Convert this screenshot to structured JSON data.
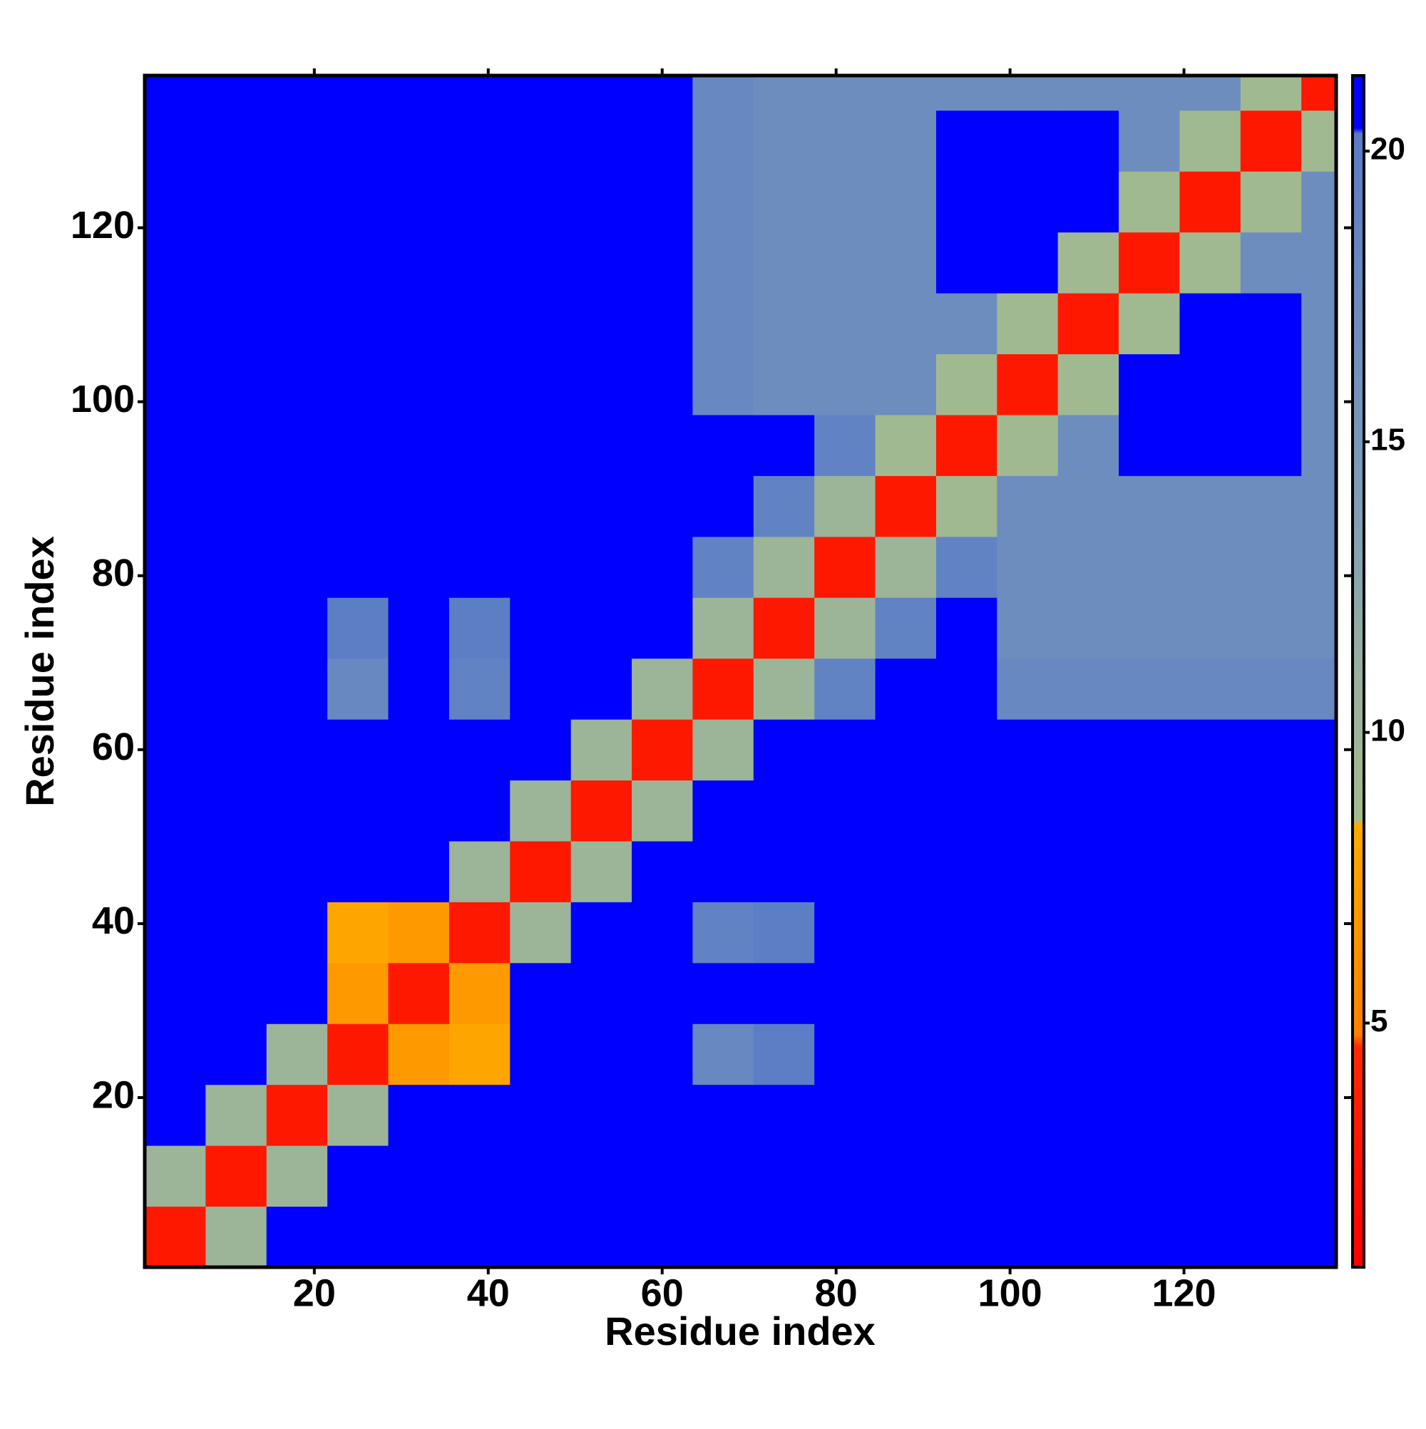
{
  "chart_data": {
    "type": "heatmap",
    "x_label": "Residue index",
    "y_label": "Residue index",
    "xbins": [
      0.5,
      7.5,
      14.5,
      21.5,
      28.5,
      35.5,
      42.5,
      49.5,
      56.5,
      63.5,
      70.5,
      77.5,
      84.5,
      91.5,
      98.5,
      105.5,
      112.5,
      119.5,
      126.5,
      133.5,
      137.5
    ],
    "ybins": [
      0.5,
      7.5,
      14.5,
      21.5,
      28.5,
      35.5,
      42.5,
      49.5,
      56.5,
      63.5,
      70.5,
      77.5,
      84.5,
      91.5,
      98.5,
      105.5,
      112.5,
      119.5,
      126.5,
      133.5,
      137.5
    ],
    "z": [
      [
        3,
        10,
        24,
        24,
        24,
        24,
        24,
        24,
        24,
        24,
        24,
        24,
        24,
        24,
        24,
        24,
        24,
        24,
        24,
        24
      ],
      [
        10,
        3,
        10,
        24,
        24,
        24,
        24,
        24,
        24,
        24,
        24,
        24,
        24,
        24,
        24,
        24,
        24,
        24,
        24,
        24
      ],
      [
        24,
        10,
        3,
        10,
        24,
        24,
        24,
        24,
        24,
        24,
        24,
        24,
        24,
        24,
        24,
        24,
        24,
        24,
        24,
        24
      ],
      [
        24,
        24,
        10,
        3,
        7,
        8,
        24,
        24,
        24,
        18,
        20,
        24,
        24,
        24,
        24,
        24,
        24,
        24,
        24,
        24
      ],
      [
        24,
        24,
        24,
        7,
        3,
        7,
        24,
        24,
        24,
        21,
        24,
        24,
        24,
        24,
        24,
        24,
        24,
        24,
        24,
        24
      ],
      [
        24,
        24,
        24,
        8,
        7,
        3,
        10,
        24,
        21,
        19,
        20,
        24,
        24,
        24,
        24,
        24,
        24,
        24,
        24,
        24
      ],
      [
        24,
        24,
        24,
        24,
        24,
        10,
        3,
        10,
        24,
        24,
        24,
        24,
        24,
        24,
        24,
        24,
        24,
        24,
        24,
        24
      ],
      [
        24,
        24,
        24,
        24,
        24,
        24,
        10,
        3,
        10,
        24,
        24,
        24,
        24,
        24,
        24,
        24,
        24,
        24,
        24,
        24
      ],
      [
        24,
        24,
        24,
        24,
        24,
        21,
        24,
        10,
        3,
        10,
        24,
        24,
        24,
        24,
        24,
        24,
        24,
        24,
        24,
        24
      ],
      [
        24,
        24,
        24,
        18,
        21,
        19,
        24,
        24,
        10,
        3,
        10,
        19,
        21,
        21,
        18,
        18,
        18,
        18,
        18,
        18
      ],
      [
        24,
        24,
        24,
        20,
        24,
        20,
        24,
        24,
        24,
        10,
        3,
        10,
        19,
        21,
        17,
        17,
        17,
        17,
        17,
        17
      ],
      [
        24,
        24,
        24,
        24,
        24,
        24,
        24,
        24,
        24,
        19,
        10,
        3,
        10,
        19,
        17,
        17,
        17,
        17,
        17,
        17
      ],
      [
        24,
        24,
        24,
        24,
        24,
        24,
        24,
        24,
        24,
        21,
        19,
        10,
        3,
        9,
        17,
        17,
        17,
        17,
        17,
        17
      ],
      [
        24,
        24,
        24,
        24,
        24,
        24,
        24,
        24,
        24,
        21,
        21,
        19,
        9,
        3,
        9,
        17,
        21,
        21,
        21,
        17
      ],
      [
        24,
        24,
        24,
        24,
        24,
        24,
        24,
        24,
        24,
        18,
        17,
        17,
        17,
        9,
        3,
        9,
        22,
        22,
        22,
        17
      ],
      [
        24,
        24,
        24,
        24,
        24,
        24,
        24,
        24,
        24,
        18,
        17,
        17,
        17,
        17,
        9,
        3,
        9,
        22,
        22,
        17
      ],
      [
        24,
        24,
        24,
        24,
        24,
        24,
        24,
        24,
        24,
        18,
        17,
        17,
        17,
        21,
        22,
        9,
        3,
        9,
        17,
        17
      ],
      [
        24,
        24,
        24,
        24,
        24,
        24,
        24,
        24,
        24,
        18,
        17,
        17,
        17,
        21,
        22,
        22,
        9,
        3,
        9,
        17
      ],
      [
        24,
        24,
        24,
        24,
        24,
        24,
        24,
        24,
        24,
        18,
        17,
        17,
        17,
        21,
        22,
        22,
        17,
        9,
        3,
        9
      ],
      [
        24,
        24,
        24,
        24,
        24,
        24,
        24,
        24,
        24,
        18,
        17,
        17,
        17,
        17,
        17,
        17,
        17,
        17,
        9,
        3
      ]
    ],
    "xlim": [
      0.5,
      137.5
    ],
    "ylim": [
      0.5,
      137.5
    ],
    "xticks": [
      20,
      40,
      60,
      80,
      100,
      120
    ],
    "yticks": [
      20,
      40,
      60,
      80,
      100,
      120
    ],
    "zlim": [
      0.8,
      21.3
    ],
    "zticks": [
      5,
      10,
      15,
      20
    ],
    "colorscale": [
      [
        0.8,
        "#ff0000"
      ],
      [
        4.6,
        "#ff2a00"
      ],
      [
        4.8,
        "#ff7f00"
      ],
      [
        8.4,
        "#ffaa00"
      ],
      [
        8.5,
        "#a3bb8e"
      ],
      [
        11,
        "#98b09e"
      ],
      [
        14,
        "#7f9cb8"
      ],
      [
        20.3,
        "#5a7cc6"
      ],
      [
        20.4,
        "#0000ff"
      ],
      [
        21.3,
        "#0000ff"
      ]
    ]
  }
}
